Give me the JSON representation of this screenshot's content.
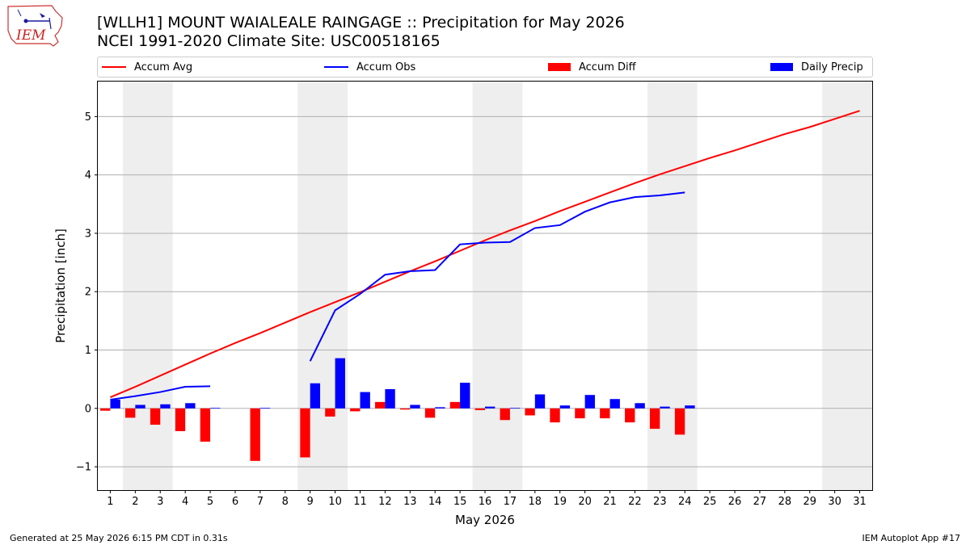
{
  "header": {
    "title_line1": "[WLLH1] MOUNT WAIALEALE RAINGAGE :: Precipitation for May 2026",
    "title_line2": "NCEI 1991-2020 Climate Site: USC00518165",
    "logo_text": "IEM"
  },
  "footer": {
    "left": "Generated at 25 May 2026 6:15 PM CDT in 0.31s",
    "right": "IEM Autoplot App #17"
  },
  "colors": {
    "avg": "#ff0000",
    "obs": "#0000ff",
    "diff": "#ff0000",
    "daily": "#0000ff",
    "weekend": "#eeeeee",
    "grid": "#b0b0b0"
  },
  "chart_data": {
    "type": "bar",
    "title": "[WLLH1] MOUNT WAIALEALE RAINGAGE :: Precipitation for May 2026",
    "subtitle": "NCEI 1991-2020 Climate Site: USC00518165",
    "xlabel": "May 2026",
    "ylabel": "Precipitation [inch]",
    "xlim": [
      0.5,
      31.5
    ],
    "ylim": [
      -1.4,
      5.6
    ],
    "yticks": [
      -1,
      0,
      1,
      2,
      3,
      4,
      5
    ],
    "ytick_labels": [
      "−1",
      "0",
      "1",
      "2",
      "3",
      "4",
      "5"
    ],
    "grid": "y",
    "legend_position": "top",
    "legend": [
      "Accum Avg",
      "Accum Obs",
      "Accum Diff",
      "Daily Precip"
    ],
    "weekends": [
      [
        2,
        3
      ],
      [
        9,
        10
      ],
      [
        16,
        17
      ],
      [
        23,
        24
      ],
      [
        30,
        31
      ]
    ],
    "days": [
      1,
      2,
      3,
      4,
      5,
      6,
      7,
      8,
      9,
      10,
      11,
      12,
      13,
      14,
      15,
      16,
      17,
      18,
      19,
      20,
      21,
      22,
      23,
      24,
      25,
      26,
      27,
      28,
      29,
      30,
      31
    ],
    "series": [
      {
        "name": "Accum Avg",
        "type": "line",
        "x": [
          1,
          2,
          3,
          4,
          5,
          6,
          7,
          8,
          9,
          10,
          11,
          12,
          13,
          14,
          15,
          16,
          17,
          18,
          19,
          20,
          21,
          22,
          23,
          24,
          25,
          26,
          27,
          28,
          29,
          30,
          31
        ],
        "values": [
          0.19,
          0.37,
          0.56,
          0.75,
          0.94,
          1.12,
          1.29,
          1.47,
          1.65,
          1.82,
          1.99,
          2.17,
          2.35,
          2.52,
          2.7,
          2.88,
          3.05,
          3.21,
          3.38,
          3.54,
          3.7,
          3.86,
          4.01,
          4.15,
          4.29,
          4.42,
          4.56,
          4.7,
          4.82,
          4.96,
          5.1
        ]
      },
      {
        "name": "Accum Obs",
        "type": "line",
        "segments": [
          {
            "x": [
              1,
              2,
              3,
              4,
              5
            ],
            "values": [
              0.15,
              0.21,
              0.28,
              0.37,
              0.38
            ]
          },
          {
            "x": [
              9,
              10,
              11,
              12,
              13,
              14,
              15,
              16,
              17,
              18,
              19,
              20,
              21,
              22,
              23,
              24
            ],
            "values": [
              0.81,
              1.68,
              1.96,
              2.29,
              2.35,
              2.37,
              2.81,
              2.84,
              2.85,
              3.09,
              3.14,
              3.37,
              3.53,
              3.62,
              3.65,
              3.7
            ]
          }
        ]
      },
      {
        "name": "Accum Diff",
        "type": "bar",
        "x": [
          1,
          2,
          3,
          4,
          5,
          7,
          9,
          10,
          11,
          12,
          13,
          14,
          15,
          16,
          17,
          18,
          19,
          20,
          21,
          22,
          23,
          24
        ],
        "values": [
          -0.04,
          -0.16,
          -0.28,
          -0.39,
          -0.57,
          -0.9,
          -0.84,
          -0.14,
          -0.05,
          0.11,
          -0.02,
          -0.16,
          0.11,
          -0.03,
          -0.2,
          -0.12,
          -0.24,
          -0.17,
          -0.17,
          -0.24,
          -0.35,
          -0.45
        ]
      },
      {
        "name": "Daily Precip",
        "type": "bar",
        "x": [
          1,
          2,
          3,
          4,
          5,
          7,
          9,
          10,
          11,
          12,
          13,
          14,
          15,
          16,
          17,
          18,
          19,
          20,
          21,
          22,
          23,
          24
        ],
        "values": [
          0.15,
          0.06,
          0.07,
          0.09,
          0.01,
          0.01,
          0.43,
          0.86,
          0.28,
          0.33,
          0.06,
          0.02,
          0.44,
          0.03,
          0.01,
          0.24,
          0.05,
          0.23,
          0.16,
          0.09,
          0.03,
          0.05
        ]
      }
    ]
  }
}
